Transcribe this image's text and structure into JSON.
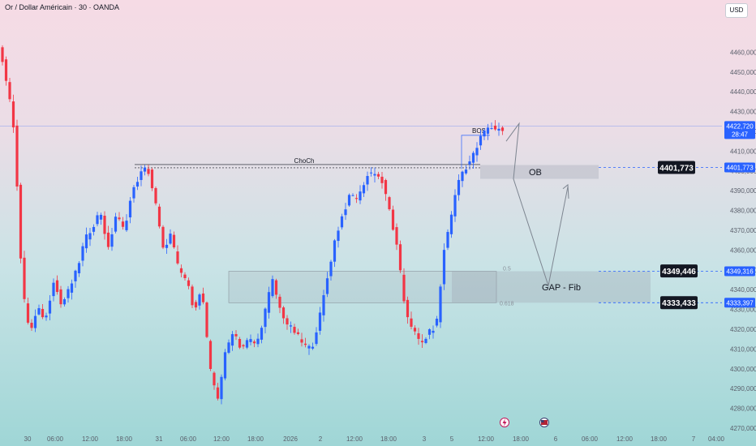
{
  "header": {
    "title": "Or / Dollar Américain · 30 · OANDA",
    "currency": "USD"
  },
  "colors": {
    "up": "#2962ff",
    "down": "#f23645",
    "price_label": "#2962ff",
    "box_label": "#131722"
  },
  "chart_data": {
    "type": "candlestick",
    "ylim": [
      4270,
      4470
    ],
    "yticks": [
      4460,
      4450,
      4440,
      4430,
      4420,
      4410,
      4400,
      4390,
      4380,
      4370,
      4360,
      4350,
      4340,
      4330,
      4320,
      4310,
      4300,
      4290,
      4280,
      4270
    ],
    "ytick_labels": [
      "4460,000",
      "4450,000",
      "4440,000",
      "4430,000",
      "4420,000",
      "4410,000",
      "4400,000",
      "4390,000",
      "4380,000",
      "4370,000",
      "4360,000",
      "4350,000",
      "4340,000",
      "4330,000",
      "4320,000",
      "4310,000",
      "4300,000",
      "4290,000",
      "4280,000",
      "4270,000"
    ],
    "xticks": [
      "30",
      "06:00",
      "12:00",
      "18:00",
      "31",
      "06:00",
      "12:00",
      "18:00",
      "2026",
      "2",
      "12:00",
      "18:00",
      "3",
      "5",
      "12:00",
      "18:00",
      "6",
      "06:00",
      "12:00",
      "18:00",
      "7",
      "04:00"
    ],
    "path": [
      4464,
      4445,
      4420,
      4340,
      4318,
      4330,
      4325,
      4345,
      4332,
      4340,
      4350,
      4365,
      4372,
      4380,
      4360,
      4378,
      4370,
      4388,
      4398,
      4402,
      4385,
      4360,
      4368,
      4350,
      4345,
      4330,
      4340,
      4300,
      4285,
      4308,
      4320,
      4310,
      4315,
      4312,
      4328,
      4345,
      4330,
      4322,
      4318,
      4312,
      4310,
      4325,
      4345,
      4365,
      4378,
      4388,
      4386,
      4397,
      4400,
      4395,
      4380,
      4360,
      4330,
      4320,
      4312,
      4318,
      4322,
      4360,
      4380,
      4398,
      4403,
      4410,
      4420,
      4422,
      4421
    ],
    "annotations": {
      "choch_label": "ChoCh",
      "choch_price": 4402,
      "bos_label": "BOS",
      "ob_label": "OB",
      "ob_top": 4403,
      "ob_bottom": 4396,
      "gap_label": "GAP - Fib",
      "gap_top": 4349.3,
      "gap_bottom": 4333.4,
      "fib_levels": [
        {
          "label": "0.5",
          "price": 4349.3
        },
        {
          "label": "0.618",
          "price": 4333.4
        }
      ]
    },
    "price_tags": {
      "current": {
        "price": 4422.72,
        "label": "4422,720",
        "countdown": "28:47"
      },
      "ob": {
        "label": "4401,773",
        "price": 4401.773
      },
      "fib_upper": {
        "label": "4349,316",
        "price": 4349.316
      },
      "fib_lower": {
        "label": "4333,397",
        "price": 4333.397
      },
      "box_upper": {
        "label": "4349,446"
      },
      "box_lower": {
        "label": "4333,433"
      }
    },
    "events": [
      "lightning-event-icon",
      "us-flag-icon"
    ]
  }
}
